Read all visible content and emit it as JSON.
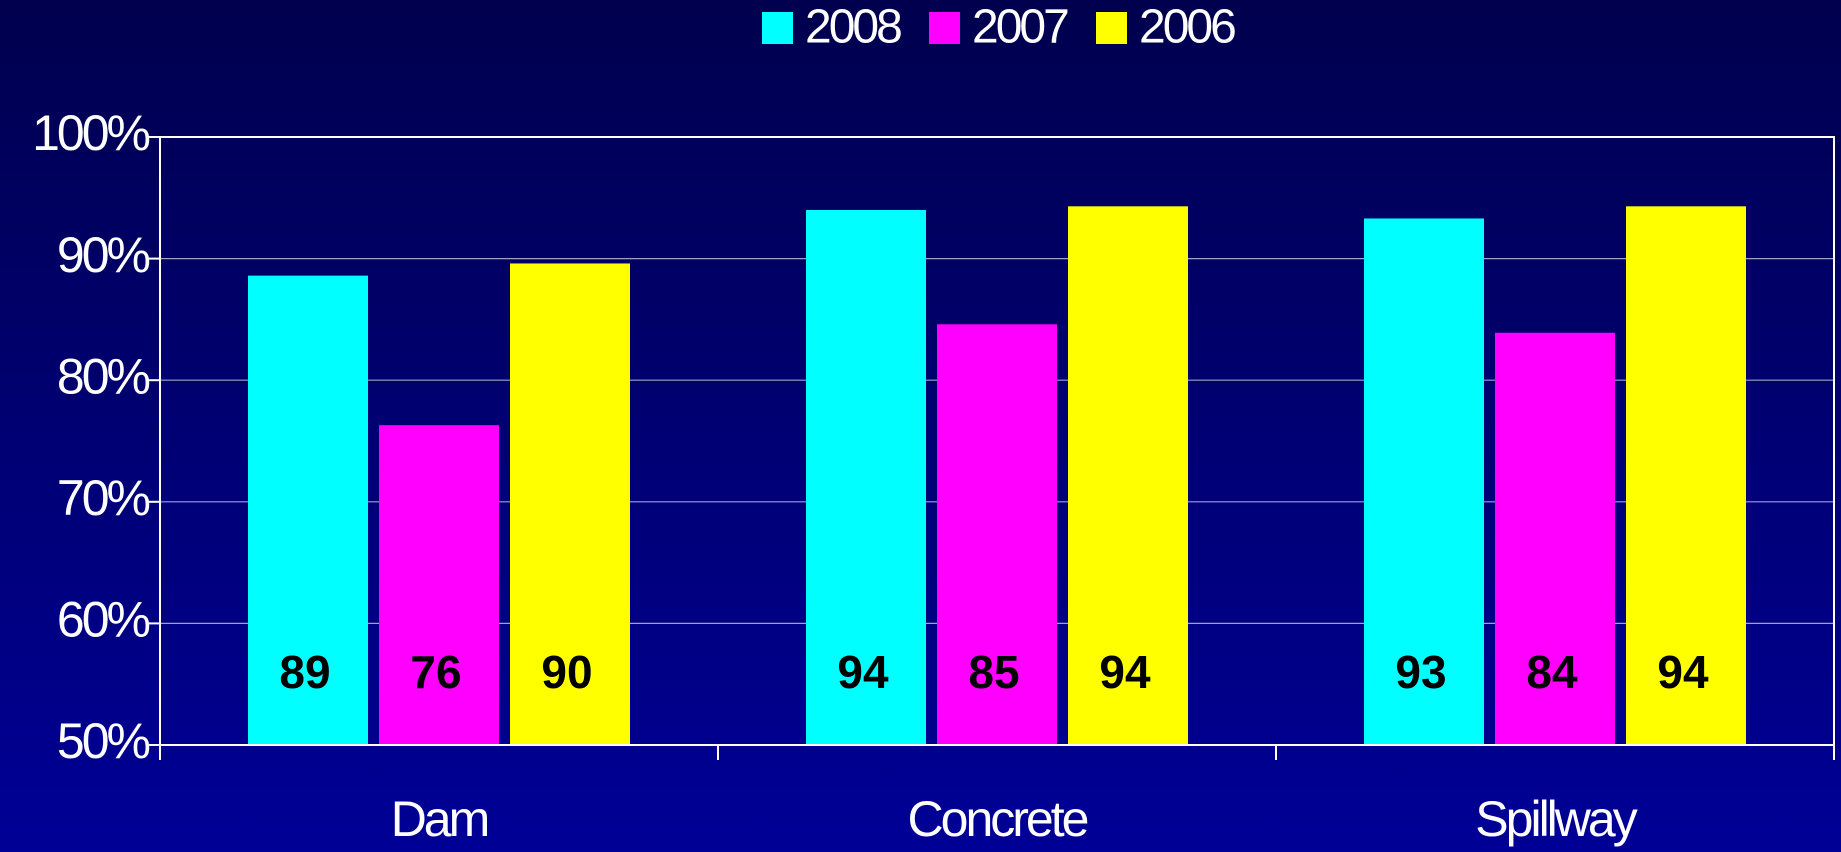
{
  "chart_data": {
    "type": "bar",
    "categories": [
      "Dam",
      "Concrete",
      "Spillway"
    ],
    "series": [
      {
        "name": "2008",
        "color": "#00ffff",
        "values": [
          88.6,
          94.0,
          93.3
        ],
        "value_labels": [
          "89",
          "94",
          "93"
        ]
      },
      {
        "name": "2007",
        "color": "#ff00ff",
        "values": [
          76.3,
          84.6,
          83.9
        ],
        "value_labels": [
          "76",
          "85",
          "84"
        ]
      },
      {
        "name": "2006",
        "color": "#ffff00",
        "values": [
          89.6,
          94.3,
          94.3
        ],
        "value_labels": [
          "90",
          "94",
          "94"
        ]
      }
    ],
    "ylim": [
      50,
      100
    ],
    "yticks": [
      {
        "value": 50,
        "label": "50%"
      },
      {
        "value": 60,
        "label": "60%"
      },
      {
        "value": 70,
        "label": "70%"
      },
      {
        "value": 80,
        "label": "80%"
      },
      {
        "value": 90,
        "label": "90%"
      },
      {
        "value": 100,
        "label": "100%"
      }
    ],
    "grid": true,
    "legend": "top"
  }
}
